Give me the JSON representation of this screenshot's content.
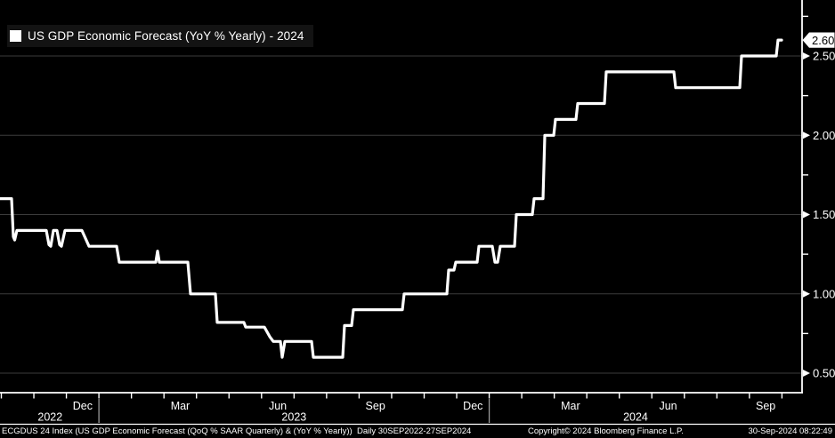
{
  "legend": {
    "label": "US GDP Economic Forecast (YoY % Yearly) - 2024"
  },
  "footer": {
    "left": "ECGDUS 24 Index (US GDP Economic Forecast (QoQ % SAAR Quarterly) & (YoY % Yearly))  Daily 30SEP2022-27SEP2024",
    "copyright": "Copyright© 2024 Bloomberg Finance L.P.",
    "timestamp": "30-Sep-2024 08:22:49"
  },
  "colors": {
    "background": "#000000",
    "line": "#ffffff",
    "grid": "#3c3c3c",
    "axis": "#ffffff",
    "text": "#ffffff",
    "year_separator": "#9a9a9a",
    "last_value_tag_bg": "#ffffff",
    "last_value_tag_text": "#000000"
  },
  "chart_data": {
    "type": "line",
    "style": "step",
    "title": "US GDP Economic Forecast (YoY % Yearly) - 2024",
    "x_axis": {
      "label_months": [
        "Dec",
        "Mar",
        "Jun",
        "Sep",
        "Dec",
        "Mar",
        "Jun",
        "Sep"
      ],
      "years": [
        "2022",
        "2023",
        "2024"
      ],
      "range_note": "Daily 30SEP2022-27SEP2024",
      "mapping_note": "x in px: Oct-1-2022 = 1.5px, Jan-1-2023 = 111px, Jan-1-2024 = 549.5px, 36.54 px per month"
    },
    "y_axis": {
      "ticks": [
        "0.50",
        "1.00",
        "1.50",
        "2.00",
        "2.50"
      ],
      "tick_values": [
        0.5,
        1.0,
        1.5,
        2.0,
        2.5
      ],
      "minor_tick_values": [
        0.75,
        1.25,
        1.75,
        2.25,
        2.75
      ],
      "range": [
        0.4,
        2.77
      ],
      "grid": true,
      "side": "right"
    },
    "last_value": "2.60",
    "legend_position": "top-left",
    "series": [
      {
        "name": "US GDP Economic Forecast (YoY % Yearly) - 2024",
        "color": "#ffffff",
        "points": [
          [
            0,
            1.6
          ],
          [
            13,
            1.6
          ],
          [
            15,
            1.36
          ],
          [
            16.5,
            1.34
          ],
          [
            19,
            1.4
          ],
          [
            52,
            1.4
          ],
          [
            55,
            1.31
          ],
          [
            57,
            1.3
          ],
          [
            60,
            1.4
          ],
          [
            64,
            1.4
          ],
          [
            67,
            1.31
          ],
          [
            69,
            1.3
          ],
          [
            73,
            1.4
          ],
          [
            92,
            1.4
          ],
          [
            100,
            1.3
          ],
          [
            131,
            1.3
          ],
          [
            134,
            1.2
          ],
          [
            175,
            1.2
          ],
          [
            177,
            1.27
          ],
          [
            179,
            1.2
          ],
          [
            211,
            1.2
          ],
          [
            214,
            1.0
          ],
          [
            242,
            1.0
          ],
          [
            244,
            0.82
          ],
          [
            274,
            0.82
          ],
          [
            276,
            0.79
          ],
          [
            297,
            0.79
          ],
          [
            303,
            0.73
          ],
          [
            307,
            0.7
          ],
          [
            315,
            0.7
          ],
          [
            317,
            0.6
          ],
          [
            320,
            0.7
          ],
          [
            350,
            0.7
          ],
          [
            352,
            0.6
          ],
          [
            385,
            0.6
          ],
          [
            387,
            0.8
          ],
          [
            395,
            0.8
          ],
          [
            397,
            0.9
          ],
          [
            452,
            0.9
          ],
          [
            454,
            1.0
          ],
          [
            502,
            1.0
          ],
          [
            504,
            1.15
          ],
          [
            510,
            1.15
          ],
          [
            512,
            1.2
          ],
          [
            536,
            1.2
          ],
          [
            538,
            1.3
          ],
          [
            553,
            1.3
          ],
          [
            556,
            1.2
          ],
          [
            559,
            1.2
          ],
          [
            562,
            1.3
          ],
          [
            578,
            1.3
          ],
          [
            580,
            1.5
          ],
          [
            598,
            1.5
          ],
          [
            600,
            1.6
          ],
          [
            610,
            1.6
          ],
          [
            612,
            2.0
          ],
          [
            622,
            2.0
          ],
          [
            624,
            2.1
          ],
          [
            647,
            2.1
          ],
          [
            649,
            2.2
          ],
          [
            679,
            2.2
          ],
          [
            681,
            2.4
          ],
          [
            757,
            2.4
          ],
          [
            759,
            2.3
          ],
          [
            831,
            2.3
          ],
          [
            833,
            2.5
          ],
          [
            872,
            2.5
          ],
          [
            874,
            2.6
          ],
          [
            878,
            2.6
          ]
        ]
      }
    ]
  }
}
